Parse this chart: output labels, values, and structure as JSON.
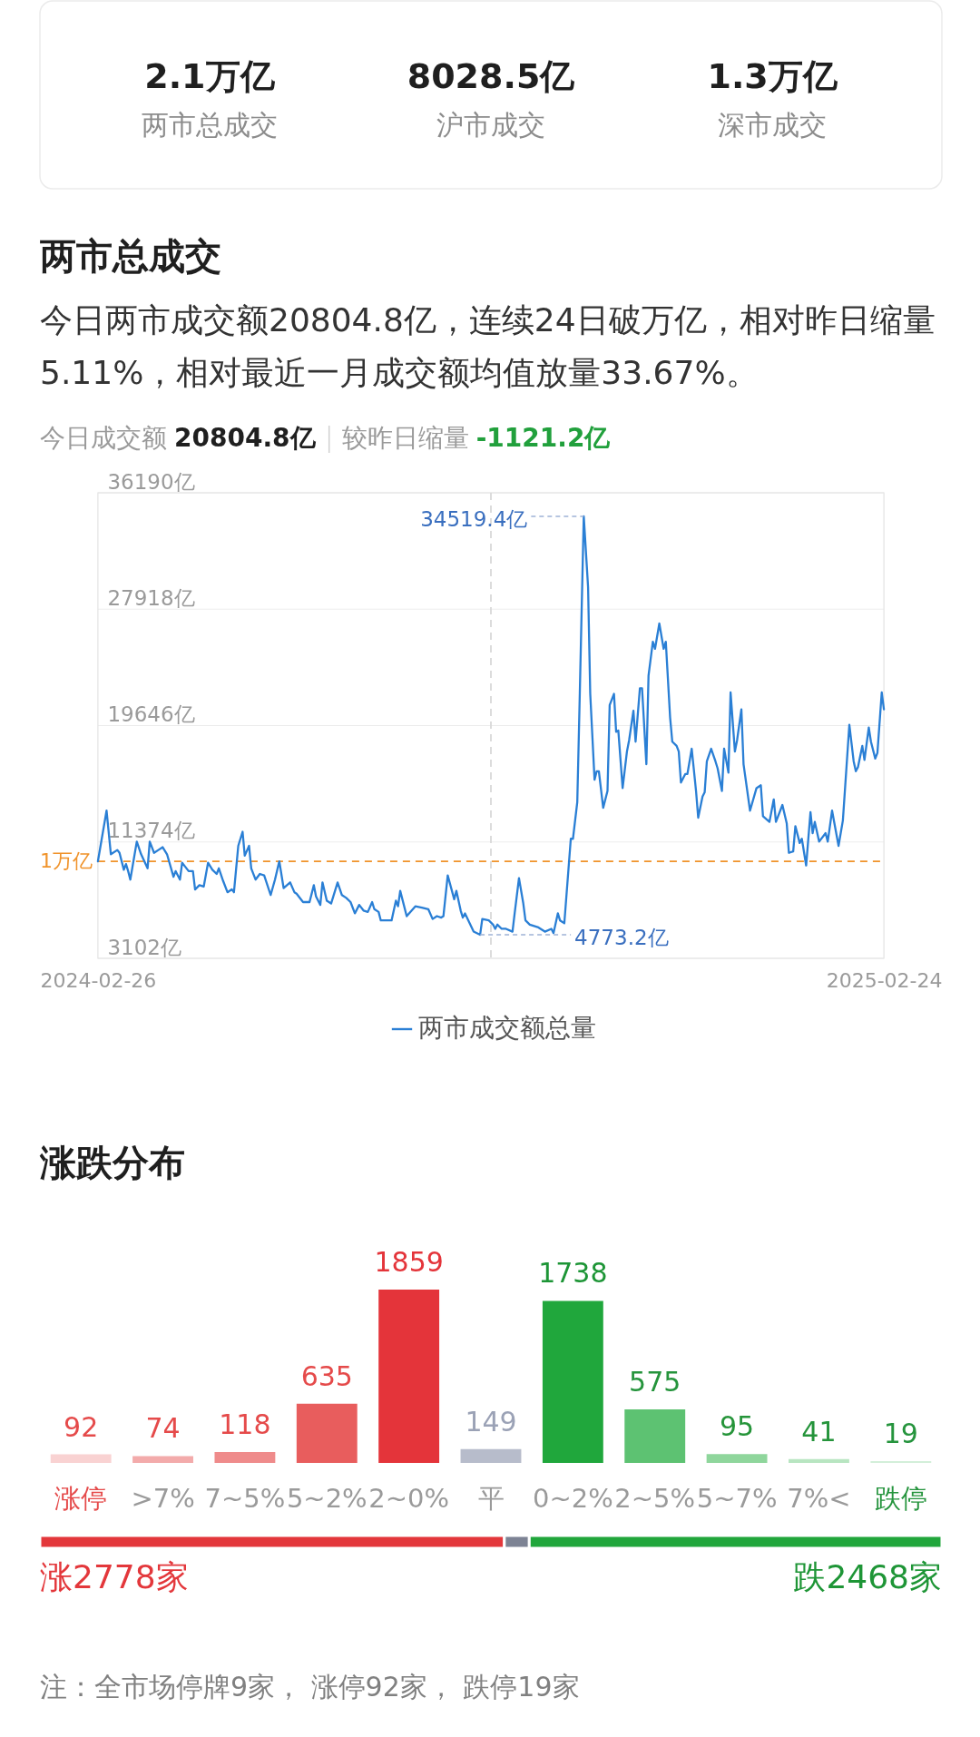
{
  "chart_data": [
    {
      "type": "other",
      "annotations": [
        "2.1万亿",
        "两市总成交",
        "8028.5亿",
        "沪市成交",
        "1.3万亿",
        "深市成交"
      ]
    },
    {
      "type": "line",
      "title": "两市总成交",
      "subtitle": "今日两市成交额20804.8亿，连续24日破万亿，相对昨日缩量5.11%，相对最近一月成交额均值放量33.67%。",
      "annotations": [
        "今日成交额",
        "20804.8亿",
        "较昨日缩量",
        "-1121.2亿",
        {
          "text": "34519.4亿",
          "x": "2024-10-08",
          "y": 34519.4
        },
        {
          "text": "4773.2亿",
          "x": "2024-08-21",
          "y": 4773.2
        }
      ],
      "series": [
        {
          "name": "两市成交额总量",
          "color": "#2a7fd5",
          "x": [
            "2024-02-26",
            "2024-03-01",
            "2024-03-03",
            "2024-03-06",
            "2024-03-07",
            "2024-03-09",
            "2024-03-10",
            "2024-03-11",
            "2024-03-12",
            "2024-03-15",
            "2024-03-17",
            "2024-03-20",
            "2024-03-21",
            "2024-03-23",
            "2024-03-25",
            "2024-03-27",
            "2024-03-29",
            "2024-04-01",
            "2024-04-02",
            "2024-04-04",
            "2024-04-05",
            "2024-04-08",
            "2024-04-10",
            "2024-04-11",
            "2024-04-13",
            "2024-04-15",
            "2024-04-17",
            "2024-04-19",
            "2024-04-21",
            "2024-04-22",
            "2024-04-24",
            "2024-04-26",
            "2024-04-28",
            "2024-04-29",
            "2024-05-01",
            "2024-05-03",
            "2024-05-04",
            "2024-05-06",
            "2024-05-07",
            "2024-05-09",
            "2024-05-11",
            "2024-05-13",
            "2024-05-16",
            "2024-05-18",
            "2024-05-20",
            "2024-05-22",
            "2024-05-25",
            "2024-05-27",
            "2024-05-28",
            "2024-05-31",
            "2024-06-03",
            "2024-06-05",
            "2024-06-06",
            "2024-06-08",
            "2024-06-09",
            "2024-06-11",
            "2024-06-13",
            "2024-06-16",
            "2024-06-18",
            "2024-06-20",
            "2024-06-22",
            "2024-06-24",
            "2024-06-26",
            "2024-06-28",
            "2024-06-30",
            "2024-07-02",
            "2024-07-03",
            "2024-07-05",
            "2024-07-06",
            "2024-07-11",
            "2024-07-13",
            "2024-07-14",
            "2024-07-15",
            "2024-07-18",
            "2024-07-22",
            "2024-07-25",
            "2024-07-28",
            "2024-07-30",
            "2024-08-01",
            "2024-08-03",
            "2024-08-04",
            "2024-08-06",
            "2024-08-09",
            "2024-08-10",
            "2024-08-12",
            "2024-08-13",
            "2024-08-14",
            "2024-08-18",
            "2024-08-21",
            "2024-08-22",
            "2024-08-25",
            "2024-08-27",
            "2024-08-28",
            "2024-08-29",
            "2024-08-31",
            "2024-09-02",
            "2024-09-05",
            "2024-09-06",
            "2024-09-08",
            "2024-09-10",
            "2024-09-11",
            "2024-09-13",
            "2024-09-17",
            "2024-09-20",
            "2024-09-23",
            "2024-09-24",
            "2024-09-26",
            "2024-09-27",
            "2024-09-29",
            "2024-10-02",
            "2024-10-03",
            "2024-10-05",
            "2024-10-06",
            "2024-10-08",
            "2024-10-10",
            "2024-10-11",
            "2024-10-13",
            "2024-10-14",
            "2024-10-15",
            "2024-10-17",
            "2024-10-19",
            "2024-10-20",
            "2024-10-22",
            "2024-10-23",
            "2024-10-24",
            "2024-10-26",
            "2024-10-28",
            "2024-10-29",
            "2024-10-31",
            "2024-11-01",
            "2024-11-03",
            "2024-11-04",
            "2024-11-06",
            "2024-11-07",
            "2024-11-09",
            "2024-11-10",
            "2024-11-12",
            "2024-11-14",
            "2024-11-15",
            "2024-11-17",
            "2024-11-18",
            "2024-11-20",
            "2024-11-21",
            "2024-11-22",
            "2024-11-24",
            "2024-11-25",
            "2024-11-27",
            "2024-11-29",
            "2024-11-30",
            "2024-12-02",
            "2024-12-03",
            "2024-12-04",
            "2024-12-06",
            "2024-12-08",
            "2024-12-09",
            "2024-12-11",
            "2024-12-12",
            "2024-12-14",
            "2024-12-15",
            "2024-12-17",
            "2024-12-18",
            "2024-12-20",
            "2024-12-21",
            "2024-12-24",
            "2024-12-27",
            "2024-12-29",
            "2024-12-30",
            "2025-01-02",
            "2025-01-04",
            "2025-01-05",
            "2025-01-08",
            "2025-01-10",
            "2025-01-11",
            "2025-01-13",
            "2025-01-14",
            "2025-01-16",
            "2025-01-17",
            "2025-01-19",
            "2025-01-21",
            "2025-01-22",
            "2025-01-23",
            "2025-01-25",
            "2025-01-28",
            "2025-01-29",
            "2025-01-31",
            "2025-02-03",
            "2025-02-05",
            "2025-02-08",
            "2025-02-10",
            "2025-02-11",
            "2025-02-12",
            "2025-02-14",
            "2025-02-15",
            "2025-02-17",
            "2025-02-18",
            "2025-02-20",
            "2025-02-21",
            "2025-02-23",
            "2025-02-24"
          ],
          "values": [
            10000,
            13600,
            10500,
            10800,
            10600,
            9400,
            9800,
            9300,
            8700,
            11400,
            10500,
            9500,
            11400,
            10600,
            10800,
            11000,
            10500,
            8900,
            9300,
            8700,
            9900,
            9300,
            9300,
            8000,
            8300,
            8200,
            9900,
            9400,
            9100,
            9500,
            8600,
            7800,
            8000,
            7800,
            11100,
            12100,
            10400,
            11100,
            9500,
            8700,
            9100,
            9000,
            7600,
            8700,
            10000,
            8100,
            8500,
            7800,
            7700,
            7100,
            7100,
            8300,
            7500,
            6900,
            8500,
            7200,
            7000,
            8500,
            7600,
            7400,
            7100,
            6300,
            6900,
            6500,
            6400,
            7100,
            6600,
            6400,
            5800,
            5800,
            7200,
            6800,
            7900,
            6100,
            6800,
            6700,
            6600,
            5900,
            6100,
            6000,
            6100,
            9000,
            7300,
            7900,
            6500,
            6000,
            6300,
            5000,
            4773.2,
            5900,
            5800,
            5500,
            5200,
            5500,
            5200,
            5200,
            5000,
            6300,
            8800,
            7000,
            5800,
            5500,
            5300,
            5000,
            5200,
            4900,
            6300,
            5800,
            5600,
            11600,
            11600,
            14200,
            20800,
            34519.4,
            29500,
            21900,
            15800,
            16400,
            16400,
            13800,
            15000,
            21100,
            21900,
            19200,
            19300,
            15200,
            17800,
            18600,
            20700,
            18500,
            22300,
            22300,
            16900,
            23200,
            25600,
            25100,
            26900,
            25100,
            25600,
            20200,
            18500,
            18200,
            17800,
            15600,
            16200,
            16200,
            18000,
            15000,
            13100,
            14600,
            14900,
            17100,
            18000,
            17100,
            16600,
            15000,
            18000,
            16300,
            22000,
            17800,
            18600,
            20800,
            16900,
            13600,
            15200,
            15400,
            13200,
            12800,
            14400,
            12800,
            14000,
            12700,
            10600,
            10700,
            12500,
            11300,
            11600,
            9700,
            13500,
            12000,
            12800,
            11400,
            12000,
            11400,
            13600,
            11100,
            12900,
            19700,
            17100,
            16400,
            16700,
            18200,
            17200,
            19500,
            18500,
            17300,
            17700,
            22000,
            20804.8
          ]
        }
      ],
      "xlim": [
        "2024-02-26",
        "2025-02-24"
      ],
      "xticks": [
        "2024-02-26",
        "2025-02-24"
      ],
      "ylim": [
        3102,
        36190
      ],
      "yticks": [
        {
          "value": 3102,
          "label": "3102亿"
        },
        {
          "value": 11374,
          "label": "11374亿"
        },
        {
          "value": 19646,
          "label": "19646亿"
        },
        {
          "value": 27918,
          "label": "27918亿"
        },
        {
          "value": 36190,
          "label": "36190亿"
        }
      ],
      "ref_lines": [
        {
          "axis": "y",
          "value": 10000,
          "label": "1万亿",
          "color": "#f0932b",
          "line_style": "dashed"
        },
        {
          "axis": "x",
          "value": "2024-08-26",
          "color": "#d9d9d9",
          "line_style": "dashed"
        }
      ],
      "grid": "y",
      "legend": "bottom"
    },
    {
      "type": "bar",
      "title": "涨跌分布",
      "categories": [
        "涨停",
        ">7%",
        "7~5%",
        "5~2%",
        "2~0%",
        "平",
        "0~2%",
        "2~5%",
        "5~7%",
        "7%<",
        "跌停"
      ],
      "values": [
        92,
        74,
        118,
        635,
        1859,
        149,
        1738,
        575,
        95,
        41,
        19
      ],
      "colors": [
        "#f9d2d2",
        "#f3abab",
        "#ef8b8b",
        "#e85d5d",
        "#e4343a",
        "#b7bccb",
        "#20a73c",
        "#5dc272",
        "#8fd69c",
        "#b8e5c1",
        "#d3efd9"
      ],
      "data_labels": true,
      "tick_labels": "x"
    },
    {
      "type": "bar",
      "orientation": "horizontal",
      "stacked": true,
      "categories": [
        null
      ],
      "series": [
        {
          "color": "#e3373b",
          "values": [
            2778
          ],
          "value_labels": [
            "涨2778家"
          ]
        },
        {
          "color": "#7d8394",
          "values": [
            149
          ]
        },
        {
          "color": "#21a63c",
          "values": [
            2468
          ],
          "value_labels": [
            "跌2468家"
          ]
        }
      ],
      "tick_labels": false,
      "annotations": [
        "注：全市场停牌9家， 涨停92家， 跌停19家"
      ]
    }
  ]
}
